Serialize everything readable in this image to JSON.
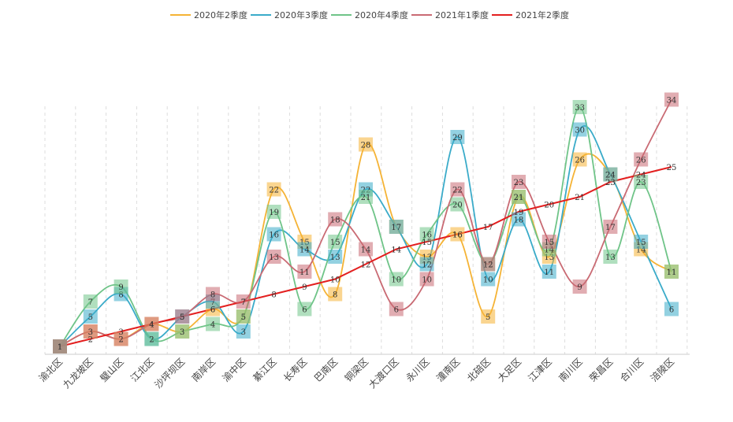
{
  "chart_data": {
    "type": "line",
    "categories": [
      "渝北区",
      "九龙坡区",
      "璧山区",
      "江北区",
      "沙坪坝区",
      "南岸区",
      "渝中区",
      "綦江区",
      "长寿区",
      "巴南区",
      "铜梁区",
      "大渡口区",
      "永川区",
      "潼南区",
      "北碚区",
      "大足区",
      "江津区",
      "南川区",
      "荣昌区",
      "合川区",
      "涪陵区"
    ],
    "series": [
      {
        "name": "2020年2季度",
        "color": "#f5b335",
        "values": [
          1,
          3,
          2,
          4,
          3,
          6,
          5,
          22,
          15,
          8,
          28,
          17,
          13,
          16,
          5,
          21,
          13,
          26,
          24,
          14,
          11
        ]
      },
      {
        "name": "2020年3季度",
        "color": "#3aabc9",
        "values": [
          1,
          5,
          8,
          2,
          5,
          7,
          3,
          16,
          14,
          13,
          22,
          17,
          12,
          29,
          10,
          18,
          11,
          30,
          24,
          15,
          6
        ]
      },
      {
        "name": "2020年4季度",
        "color": "#6fc488",
        "values": [
          1,
          7,
          9,
          2,
          3,
          4,
          5,
          19,
          6,
          15,
          21,
          10,
          16,
          20,
          12,
          21,
          14,
          33,
          13,
          23,
          11
        ]
      },
      {
        "name": "2021年1季度",
        "color": "#c96a73",
        "values": [
          1,
          3,
          2,
          4,
          5,
          8,
          7,
          13,
          11,
          18,
          14,
          6,
          10,
          22,
          12,
          23,
          15,
          9,
          17,
          26,
          34
        ]
      },
      {
        "name": "2021年2季度",
        "color": "#e31f1f",
        "values": [
          1,
          2,
          3,
          4,
          5,
          6,
          7,
          8,
          9,
          10,
          12,
          14,
          15,
          16,
          17,
          19,
          20,
          21,
          23,
          24,
          25
        ]
      }
    ],
    "legend_position": "top",
    "grid": "vertical-dashed",
    "data_labels": true,
    "ylim": [
      0,
      34
    ]
  }
}
